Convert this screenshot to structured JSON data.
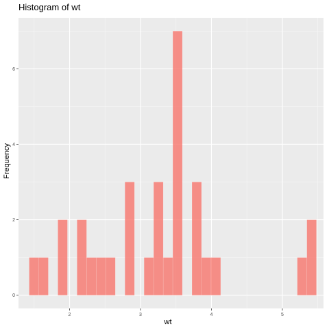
{
  "chart_data": {
    "type": "bar",
    "title": "Histogram of wt",
    "xlabel": "wt",
    "ylabel": "Frequency",
    "xlim": [
      1.28,
      5.58
    ],
    "ylim": [
      -0.35,
      7.35
    ],
    "x_ticks": [
      2,
      3,
      4,
      5
    ],
    "y_ticks": [
      0,
      2,
      4,
      6
    ],
    "grid": true,
    "bar_color": "#F8766D",
    "panel_color": "#EBEBEB",
    "bins": [
      {
        "start": 1.43,
        "end": 1.565,
        "count": 1
      },
      {
        "start": 1.565,
        "end": 1.7,
        "count": 1
      },
      {
        "start": 1.835,
        "end": 1.97,
        "count": 2
      },
      {
        "start": 2.105,
        "end": 2.24,
        "count": 2
      },
      {
        "start": 2.24,
        "end": 2.375,
        "count": 1
      },
      {
        "start": 2.375,
        "end": 2.51,
        "count": 1
      },
      {
        "start": 2.51,
        "end": 2.645,
        "count": 1
      },
      {
        "start": 2.78,
        "end": 2.915,
        "count": 3
      },
      {
        "start": 3.05,
        "end": 3.185,
        "count": 1
      },
      {
        "start": 3.185,
        "end": 3.32,
        "count": 3
      },
      {
        "start": 3.32,
        "end": 3.455,
        "count": 1
      },
      {
        "start": 3.455,
        "end": 3.59,
        "count": 7
      },
      {
        "start": 3.725,
        "end": 3.86,
        "count": 3
      },
      {
        "start": 3.86,
        "end": 3.995,
        "count": 1
      },
      {
        "start": 3.995,
        "end": 4.13,
        "count": 1
      },
      {
        "start": 5.21,
        "end": 5.345,
        "count": 1
      },
      {
        "start": 5.345,
        "end": 5.48,
        "count": 2
      }
    ]
  }
}
